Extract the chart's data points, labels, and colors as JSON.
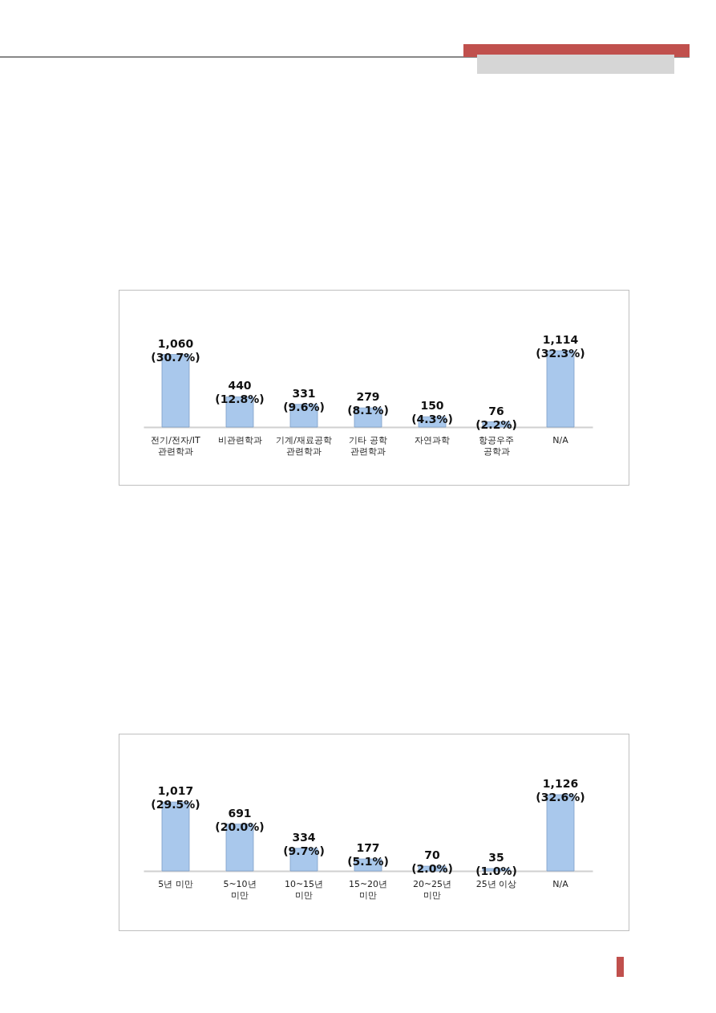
{
  "chart_data": [
    {
      "type": "bar",
      "categories": [
        "전기/전자/IT\n관련학과",
        "비관련학과",
        "기계/재료공학\n관련학과",
        "기타 공학\n관련학과",
        "자연과학",
        "항공우주\n공학과",
        "N/A"
      ],
      "values": [
        1060,
        440,
        331,
        279,
        150,
        76,
        1114
      ],
      "color": "#a9c8ec",
      "value_labels": [
        "1,060 (30.7%)",
        "440 (12.8%)",
        "331 (9.6%)",
        "279 (8.1%)",
        "150 (4.3%)",
        "76 (2.2%)",
        "1,114 (32.3%)"
      ]
    },
    {
      "type": "bar",
      "categories": [
        "5년 미만",
        "5~10년\n미만",
        "10~15년\n미만",
        "15~20년\n미만",
        "20~25년\n미만",
        "25년 이상",
        "N/A"
      ],
      "values": [
        1017,
        691,
        334,
        177,
        70,
        35,
        1126
      ],
      "color": "#a9c8ec",
      "value_labels": [
        "1,017 (29.5%)",
        "691 (20.0%)",
        "334 (9.7%)",
        "177 (5.1%)",
        "70 (2.0%)",
        "35 (1.0%)",
        "1,126 (32.6%)"
      ]
    }
  ]
}
